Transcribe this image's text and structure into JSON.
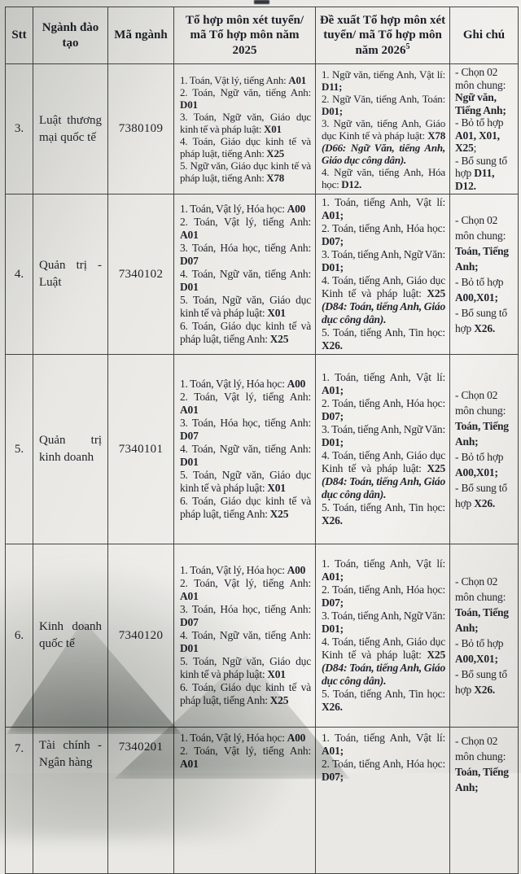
{
  "decor": {
    "top_edge_mark": "cut-off-text-fragment"
  },
  "table": {
    "columns": [
      {
        "label": "Stt"
      },
      {
        "label": "Ngành đào tạo"
      },
      {
        "label": "Mã ngành"
      },
      {
        "label": "Tổ hợp môn xét tuyển/ mã Tổ hợp môn năm 2025"
      },
      {
        "label": "Đề xuất Tổ hợp môn xét tuyển/ mã Tổ hợp môn năm 2026",
        "footnote": "5"
      },
      {
        "label": "Ghi chú"
      }
    ],
    "rows": [
      {
        "stt": "3.",
        "major": "Luật thương mại quốc tế",
        "code": "7380109",
        "tight": true,
        "cut": false,
        "combos_2025": [
          [
            [
              "1. Toán, Vật lý, tiếng Anh: ",
              ""
            ],
            [
              "A01",
              "b"
            ]
          ],
          [
            [
              "2. Toán, Ngữ văn, tiếng Anh: ",
              ""
            ],
            [
              "D01",
              "b"
            ]
          ],
          [
            [
              "3. Toán, Ngữ văn, Giáo dục kinh tế và pháp luật: ",
              ""
            ],
            [
              "X01",
              "b"
            ]
          ],
          [
            [
              "4. Toán, Giáo dục kinh tế và pháp luật, tiếng Anh: ",
              ""
            ],
            [
              "X25",
              "b"
            ]
          ],
          [
            [
              "5. Ngữ văn, Giáo dục kinh tế và pháp luật, tiếng Anh: ",
              ""
            ],
            [
              "X78",
              "b"
            ]
          ]
        ],
        "combos_2026": [
          [
            [
              "1. Ngữ văn, tiếng Anh, Vật lí: ",
              ""
            ],
            [
              "D11;",
              "b"
            ]
          ],
          [
            [
              "2. Ngữ Văn, tiếng Anh, Toán: ",
              ""
            ],
            [
              "D01;",
              "b"
            ]
          ],
          [
            [
              "3. Ngữ văn, tiếng Anh, Giáo dục Kinh tế và pháp luật: ",
              ""
            ],
            [
              "X78 ",
              "b"
            ],
            [
              "(D66: Ngữ Văn, tiếng Anh, Giáo dục công dân).",
              "bi"
            ]
          ],
          [
            [
              "4. Ngữ văn, tiếng Anh, Hóa học: ",
              ""
            ],
            [
              "D12.",
              "b"
            ]
          ]
        ],
        "notes": [
          [
            [
              "- Chọn 02 môn chung: ",
              ""
            ],
            [
              "Ngữ văn, Tiếng Anh;",
              "b"
            ]
          ],
          [
            [
              "- Bỏ tổ hợp ",
              ""
            ],
            [
              "A01, X01, X25",
              "b"
            ],
            [
              ";",
              ""
            ]
          ],
          [
            [
              "- Bổ sung tổ hợp ",
              ""
            ],
            [
              "D11, D12.",
              "b"
            ]
          ]
        ]
      },
      {
        "stt": "4.",
        "major": "Quản trị - Luật",
        "code": "7340102",
        "tight": false,
        "cut": false,
        "combos_2025": [
          [
            [
              "1. Toán, Vật lý, Hóa học: ",
              ""
            ],
            [
              "A00",
              "b"
            ]
          ],
          [
            [
              "2. Toán, Vật lý, tiếng Anh: ",
              ""
            ],
            [
              "A01",
              "b"
            ]
          ],
          [
            [
              "3. Toán, Hóa học, tiếng Anh: ",
              ""
            ],
            [
              "D07",
              "b"
            ]
          ],
          [
            [
              "4. Toán, Ngữ văn, tiếng Anh: ",
              ""
            ],
            [
              "D01",
              "b"
            ]
          ],
          [
            [
              "5. Toán, Ngữ văn, Giáo dục kinh tế và pháp luật: ",
              ""
            ],
            [
              "X01",
              "b"
            ]
          ],
          [
            [
              "6. Toán, Giáo dục kinh tế và pháp luật, tiếng Anh: ",
              ""
            ],
            [
              "X25",
              "b"
            ]
          ]
        ],
        "combos_2026": [
          [
            [
              "1. Toán, tiếng Anh, Vật lí: ",
              ""
            ],
            [
              "A01;",
              "b"
            ]
          ],
          [
            [
              "2. Toán, tiếng Anh, Hóa học: ",
              ""
            ],
            [
              "D07;",
              "b"
            ]
          ],
          [
            [
              "3. Toán, tiếng Anh, Ngữ Văn: ",
              ""
            ],
            [
              "D01;",
              "b"
            ]
          ],
          [
            [
              "4. Toán, tiếng Anh, Giáo dục Kinh tế và pháp luật: ",
              ""
            ],
            [
              "X25 ",
              "b"
            ],
            [
              "(D84: Toán, tiếng Anh, Giáo dục công dân).",
              "bi"
            ]
          ],
          [
            [
              "5. Toán, tiếng Anh, Tin học: ",
              ""
            ],
            [
              "X26.",
              "b"
            ]
          ]
        ],
        "notes": [
          [
            [
              "- Chọn 02 môn chung: ",
              ""
            ],
            [
              "Toán, Tiếng Anh;",
              "b"
            ]
          ],
          [
            [
              "- Bỏ tổ hợp ",
              ""
            ],
            [
              "A00,X01;",
              "b"
            ]
          ],
          [
            [
              "- Bổ sung tổ hợp ",
              ""
            ],
            [
              "X26.",
              "b"
            ]
          ]
        ]
      },
      {
        "stt": "5.",
        "major": "Quản trị kinh doanh",
        "code": "7340101",
        "tight": false,
        "cut": false,
        "combos_2025": [
          [
            [
              "1. Toán, Vật lý, Hóa học: ",
              ""
            ],
            [
              "A00",
              "b"
            ]
          ],
          [
            [
              "2. Toán, Vật lý, tiếng Anh: ",
              ""
            ],
            [
              "A01",
              "b"
            ]
          ],
          [
            [
              "3. Toán, Hóa học, tiếng Anh: ",
              ""
            ],
            [
              "D07",
              "b"
            ]
          ],
          [
            [
              "4. Toán, Ngữ văn, tiếng Anh: ",
              ""
            ],
            [
              "D01",
              "b"
            ]
          ],
          [
            [
              "5. Toán, Ngữ văn, Giáo dục kinh tế và pháp luật: ",
              ""
            ],
            [
              "X01",
              "b"
            ]
          ],
          [
            [
              "6. Toán, Giáo dục kinh tế và pháp luật, tiếng Anh: ",
              ""
            ],
            [
              "X25",
              "b"
            ]
          ]
        ],
        "combos_2026": [
          [
            [
              "1. Toán, tiếng Anh, Vật lí: ",
              ""
            ],
            [
              "A01;",
              "b"
            ]
          ],
          [
            [
              "2. Toán, tiếng Anh, Hóa học: ",
              ""
            ],
            [
              "D07;",
              "b"
            ]
          ],
          [
            [
              "3. Toán, tiếng Anh, Ngữ Văn: ",
              ""
            ],
            [
              "D01;",
              "b"
            ]
          ],
          [
            [
              "4. Toán, tiếng Anh, Giáo dục Kinh tế và pháp luật: ",
              ""
            ],
            [
              "X25 ",
              "b"
            ],
            [
              "(D84: Toán, tiếng Anh, Giáo dục công dân).",
              "bi"
            ]
          ],
          [
            [
              "5. Toán, tiếng Anh, Tin học: ",
              ""
            ],
            [
              "X26.",
              "b"
            ]
          ]
        ],
        "notes": [
          [
            [
              "- Chọn 02 môn chung: ",
              ""
            ],
            [
              "Toán, Tiếng Anh;",
              "b"
            ]
          ],
          [
            [
              "- Bỏ tổ hợp ",
              ""
            ],
            [
              "A00,X01;",
              "b"
            ]
          ],
          [
            [
              "- Bổ sung tổ hợp ",
              ""
            ],
            [
              "X26.",
              "b"
            ]
          ]
        ]
      },
      {
        "stt": "6.",
        "major": "Kinh doanh quốc tế",
        "code": "7340120",
        "tight": false,
        "cut": false,
        "combos_2025": [
          [
            [
              "1. Toán, Vật lý, Hóa học: ",
              ""
            ],
            [
              "A00",
              "b"
            ]
          ],
          [
            [
              "2. Toán, Vật lý, tiếng Anh: ",
              ""
            ],
            [
              "A01",
              "b"
            ]
          ],
          [
            [
              "3. Toán, Hóa học, tiếng Anh: ",
              ""
            ],
            [
              "D07",
              "b"
            ]
          ],
          [
            [
              "4. Toán, Ngữ văn, tiếng Anh: ",
              ""
            ],
            [
              "D01",
              "b"
            ]
          ],
          [
            [
              "5. Toán, Ngữ văn, Giáo dục kinh tế và pháp luật: ",
              ""
            ],
            [
              "X01",
              "b"
            ]
          ],
          [
            [
              "6. Toán, Giáo dục kinh tế và pháp luật, tiếng Anh: ",
              ""
            ],
            [
              "X25",
              "b"
            ]
          ]
        ],
        "combos_2026": [
          [
            [
              "1. Toán, tiếng Anh, Vật lí: ",
              ""
            ],
            [
              "A01;",
              "b"
            ]
          ],
          [
            [
              "2. Toán, tiếng Anh, Hóa học: ",
              ""
            ],
            [
              "D07;",
              "b"
            ]
          ],
          [
            [
              "3. Toán, tiếng Anh, Ngữ Văn: ",
              ""
            ],
            [
              "D01;",
              "b"
            ]
          ],
          [
            [
              "4. Toán, tiếng Anh, Giáo dục Kinh tế và pháp luật: ",
              ""
            ],
            [
              "X25 ",
              "b"
            ],
            [
              "(D84: Toán, tiếng Anh, Giáo dục công dân).",
              "bi"
            ]
          ],
          [
            [
              "5. Toán, tiếng Anh, Tin học: ",
              ""
            ],
            [
              "X26.",
              "b"
            ]
          ]
        ],
        "notes": [
          [
            [
              "- Chọn 02 môn chung: ",
              ""
            ],
            [
              "Toán, Tiếng Anh;",
              "b"
            ]
          ],
          [
            [
              "- Bỏ tổ hợp ",
              ""
            ],
            [
              "A00,X01;",
              "b"
            ]
          ],
          [
            [
              "- Bổ sung tổ hợp ",
              ""
            ],
            [
              "X26.",
              "b"
            ]
          ]
        ]
      },
      {
        "stt": "7.",
        "major": "Tài chính - Ngân hàng",
        "code": "7340201",
        "tight": false,
        "cut": true,
        "combos_2025": [
          [
            [
              "1. Toán, Vật lý, Hóa học: ",
              ""
            ],
            [
              "A00",
              "b"
            ]
          ],
          [
            [
              "2. Toán, Vật lý, tiếng Anh: ",
              ""
            ],
            [
              "A01",
              "b"
            ]
          ]
        ],
        "combos_2026": [
          [
            [
              "1. Toán, tiếng Anh, Vật lí: ",
              ""
            ],
            [
              "A01;",
              "b"
            ]
          ],
          [
            [
              "2. Toán, tiếng Anh, Hóa học: ",
              ""
            ],
            [
              "D07;",
              "b"
            ]
          ]
        ],
        "notes": [
          [
            [
              "- Chọn 02 môn chung: ",
              ""
            ],
            [
              "Toán, Tiếng Anh;",
              "b"
            ]
          ]
        ]
      }
    ]
  }
}
